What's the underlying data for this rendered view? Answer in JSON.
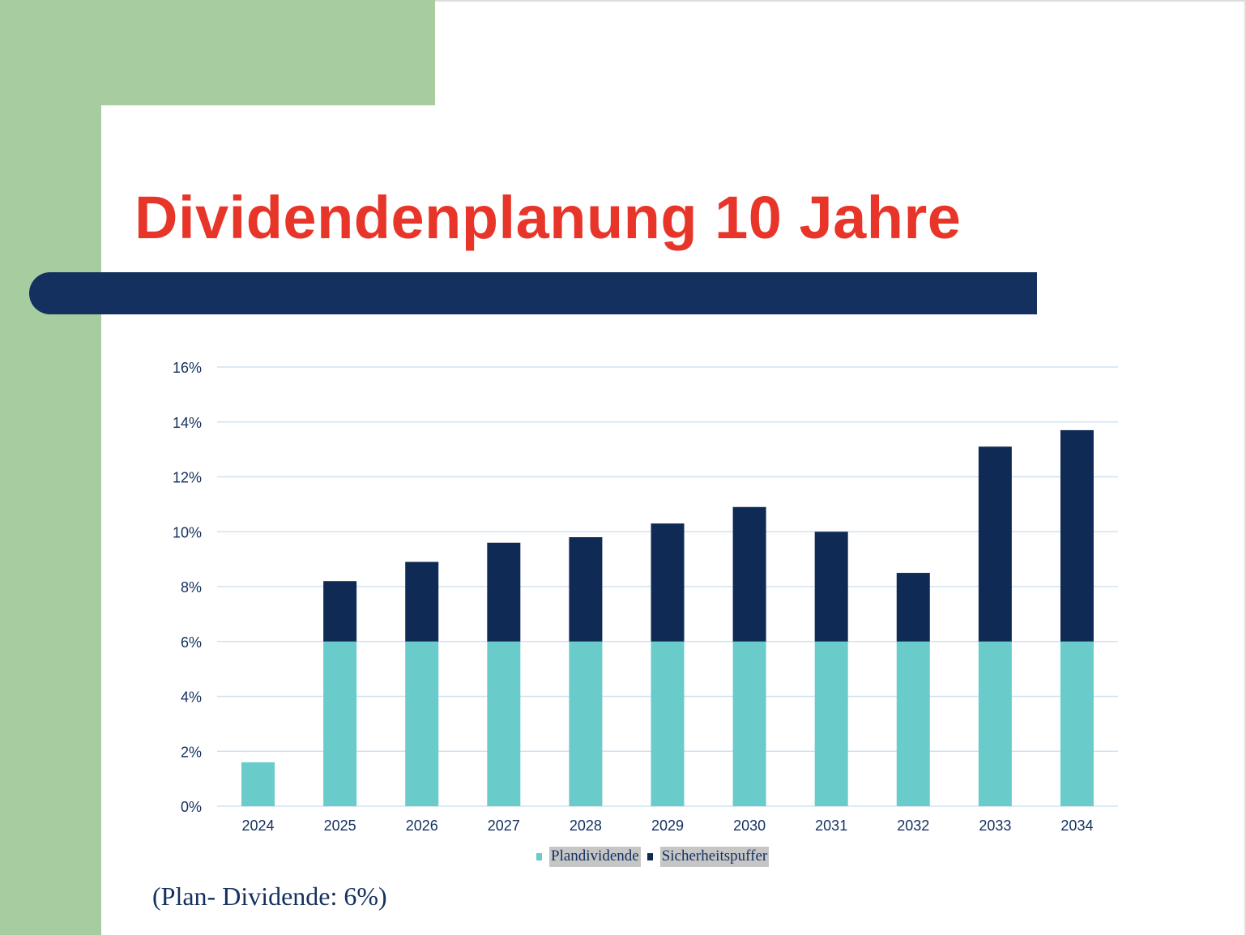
{
  "slide": {
    "title": "Dividendenplanung 10 Jahre",
    "note": "(Plan- Dividende: 6%)"
  },
  "colors": {
    "title": "#e8352a",
    "accent_green": "#a6cc9f",
    "navy": "#13305f",
    "plandividende": "#6acbcb",
    "sicherheitspuffer": "#0f2a55",
    "gridline": "#cfe3f0"
  },
  "chart_data": {
    "type": "bar",
    "stacked": true,
    "categories": [
      "2024",
      "2025",
      "2026",
      "2027",
      "2028",
      "2029",
      "2030",
      "2031",
      "2032",
      "2033",
      "2034"
    ],
    "series": [
      {
        "name": "Plandividende",
        "color": "#6acbcb",
        "values": [
          1.6,
          6,
          6,
          6,
          6,
          6,
          6,
          6,
          6,
          6,
          6
        ]
      },
      {
        "name": "Sicherheitspuffer",
        "color": "#0f2a55",
        "values": [
          0,
          2.2,
          2.9,
          3.6,
          3.8,
          4.3,
          4.9,
          4.0,
          2.5,
          7.1,
          7.7
        ]
      }
    ],
    "ylim": [
      0,
      16
    ],
    "yticks": [
      0,
      2,
      4,
      6,
      8,
      10,
      12,
      14,
      16
    ],
    "ytick_labels": [
      "0%",
      "2%",
      "4%",
      "6%",
      "8%",
      "10%",
      "12%",
      "14%",
      "16%"
    ],
    "unit": "%",
    "grid": true,
    "legend": "bottom"
  }
}
